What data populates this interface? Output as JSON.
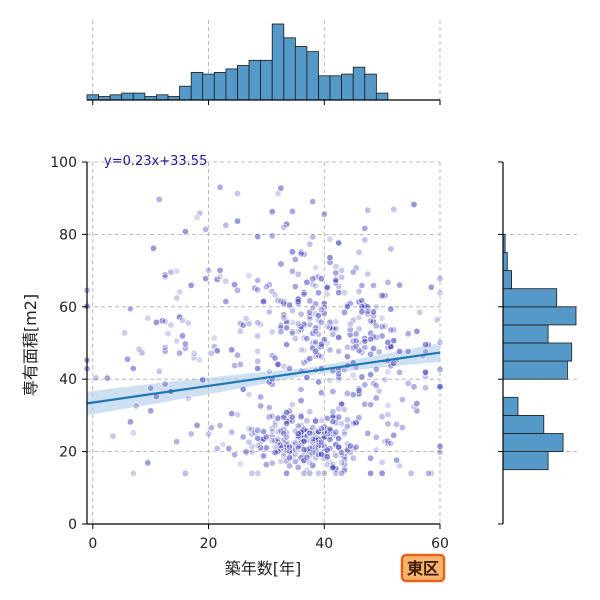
{
  "chart_data": {
    "type": "scatter",
    "xlabel": "築年数[年]",
    "ylabel": "専有面積[m2]",
    "xlim": [
      -1,
      60
    ],
    "ylim": [
      0,
      100
    ],
    "x_ticks": [
      0,
      20,
      40,
      60
    ],
    "y_ticks": [
      0,
      20,
      40,
      60,
      80,
      100
    ],
    "grid": true,
    "regression": {
      "label": "y=0.23x+33.55",
      "slope": 0.23,
      "intercept": 33.55,
      "ci_halfwidth_ends": [
        3.2,
        2.6
      ],
      "ci_halfwidth_mid": 1.1
    },
    "badge": "東区",
    "colors": {
      "points": "#3333bb",
      "regression": "#1f77b4",
      "ci": "#a6c8e8",
      "hist": "#5599c8",
      "badge_fill": "#f7b56b",
      "badge_edge": "#e8601c"
    },
    "x_histogram": {
      "bin_width": 2,
      "start": -1,
      "counts": [
        3,
        2,
        3,
        4,
        4,
        2,
        3,
        2,
        8,
        16,
        15,
        16,
        18,
        20,
        23,
        23,
        44,
        36,
        31,
        28,
        14,
        14,
        15,
        19,
        15,
        4
      ]
    },
    "y_histogram": {
      "bin_width": 5,
      "start": 15,
      "counts": [
        21,
        28,
        19,
        7,
        0,
        30,
        32,
        21,
        34,
        25,
        4,
        2,
        1,
        0,
        0,
        0,
        0
      ]
    },
    "point_clusters": [
      {
        "cx": 38,
        "cy": 22,
        "sx": 5,
        "sy": 4,
        "n": 190
      },
      {
        "cx": 30,
        "cy": 25,
        "sx": 6,
        "sy": 5,
        "n": 70
      },
      {
        "cx": 38,
        "cy": 54,
        "sx": 8,
        "sy": 10,
        "n": 230
      },
      {
        "cx": 50,
        "cy": 42,
        "sx": 6,
        "sy": 14,
        "n": 90
      },
      {
        "cx": 20,
        "cy": 50,
        "sx": 12,
        "sy": 15,
        "n": 55
      },
      {
        "cx": 34,
        "cy": 80,
        "sx": 10,
        "sy": 8,
        "n": 40
      },
      {
        "cx": 8,
        "cy": 40,
        "sx": 6,
        "sy": 15,
        "n": 25
      }
    ]
  }
}
